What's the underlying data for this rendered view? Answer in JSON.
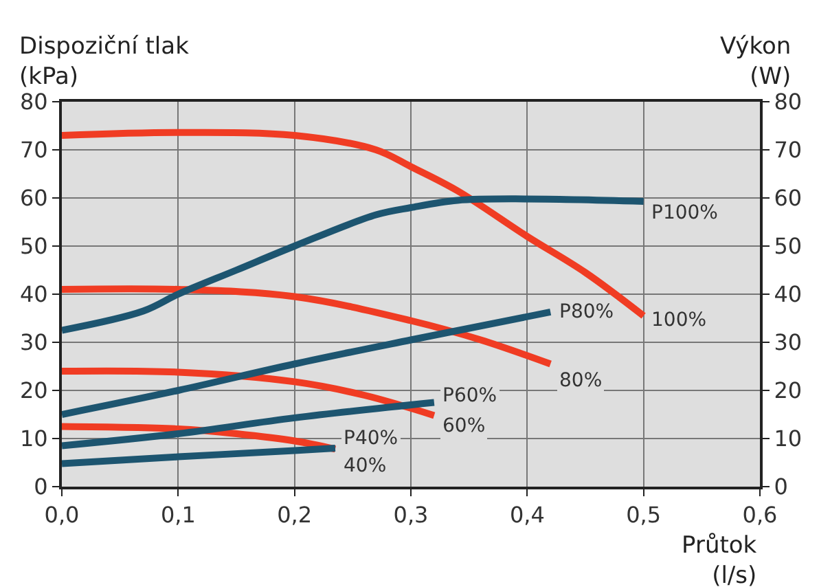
{
  "chart_data": {
    "type": "line",
    "ylabel": "Dispoziční tlak\n(kPa)",
    "y2label": "Výkon\n(W)",
    "xlabel": "Průtok\n(l/s)",
    "xlim": [
      0,
      0.6
    ],
    "xticks": [
      {
        "value": 0,
        "label": "0,0"
      },
      {
        "value": 0.1,
        "label": "0,1"
      },
      {
        "value": 0.2,
        "label": "0,2"
      },
      {
        "value": 0.3,
        "label": "0,3"
      },
      {
        "value": 0.4,
        "label": "0,4"
      },
      {
        "value": 0.5,
        "label": "0,5"
      },
      {
        "value": 0.6,
        "label": "0,6"
      }
    ],
    "ylim": [
      0,
      80
    ],
    "yticks": [
      0,
      10,
      20,
      30,
      40,
      50,
      60,
      70,
      80
    ],
    "y2lim": [
      0,
      80
    ],
    "y2ticks": [
      0,
      10,
      20,
      30,
      40,
      50,
      60,
      70,
      80
    ],
    "grid": true,
    "legend": false,
    "marker": "none",
    "line_style": "solid",
    "series": [
      {
        "name": "P100%",
        "color": "#1d5570",
        "axis": "y2",
        "x": [
          0,
          0.07,
          0.1,
          0.15,
          0.2,
          0.27,
          0.3,
          0.34,
          0.4,
          0.5
        ],
        "values": [
          32.5,
          36.5,
          40,
          45,
          50,
          56.5,
          58,
          59.5,
          59.8,
          59.3
        ]
      },
      {
        "name": "P80%",
        "color": "#1d5570",
        "axis": "y2",
        "x": [
          0,
          0.1,
          0.2,
          0.3,
          0.42
        ],
        "values": [
          15,
          20,
          25.5,
          30.5,
          36.3
        ]
      },
      {
        "name": "P60%",
        "color": "#1d5570",
        "axis": "y2",
        "x": [
          0,
          0.1,
          0.2,
          0.32
        ],
        "values": [
          8.5,
          11,
          14.3,
          17.5
        ]
      },
      {
        "name": "P40%",
        "color": "#1d5570",
        "axis": "y2",
        "x": [
          0,
          0.1,
          0.2,
          0.235
        ],
        "values": [
          4.8,
          6.2,
          7.5,
          8
        ]
      },
      {
        "name": "100%",
        "color": "#f03c23",
        "x": [
          0,
          0.1,
          0.2,
          0.27,
          0.3,
          0.34,
          0.4,
          0.45,
          0.5
        ],
        "values": [
          73,
          73.6,
          73,
          70,
          66.5,
          61.5,
          52,
          44.5,
          35.5
        ]
      },
      {
        "name": "80%",
        "color": "#f03c23",
        "x": [
          0,
          0.1,
          0.2,
          0.3,
          0.36,
          0.42
        ],
        "values": [
          41,
          41,
          39.5,
          34.5,
          30.5,
          25.5
        ]
      },
      {
        "name": "60%",
        "color": "#f03c23",
        "x": [
          0,
          0.1,
          0.2,
          0.26,
          0.32
        ],
        "values": [
          24,
          23.8,
          21.8,
          19,
          14.8
        ]
      },
      {
        "name": "40%",
        "color": "#f03c23",
        "x": [
          0,
          0.1,
          0.15,
          0.2,
          0.235
        ],
        "values": [
          12.5,
          12,
          11,
          9.5,
          7.8
        ]
      }
    ]
  }
}
